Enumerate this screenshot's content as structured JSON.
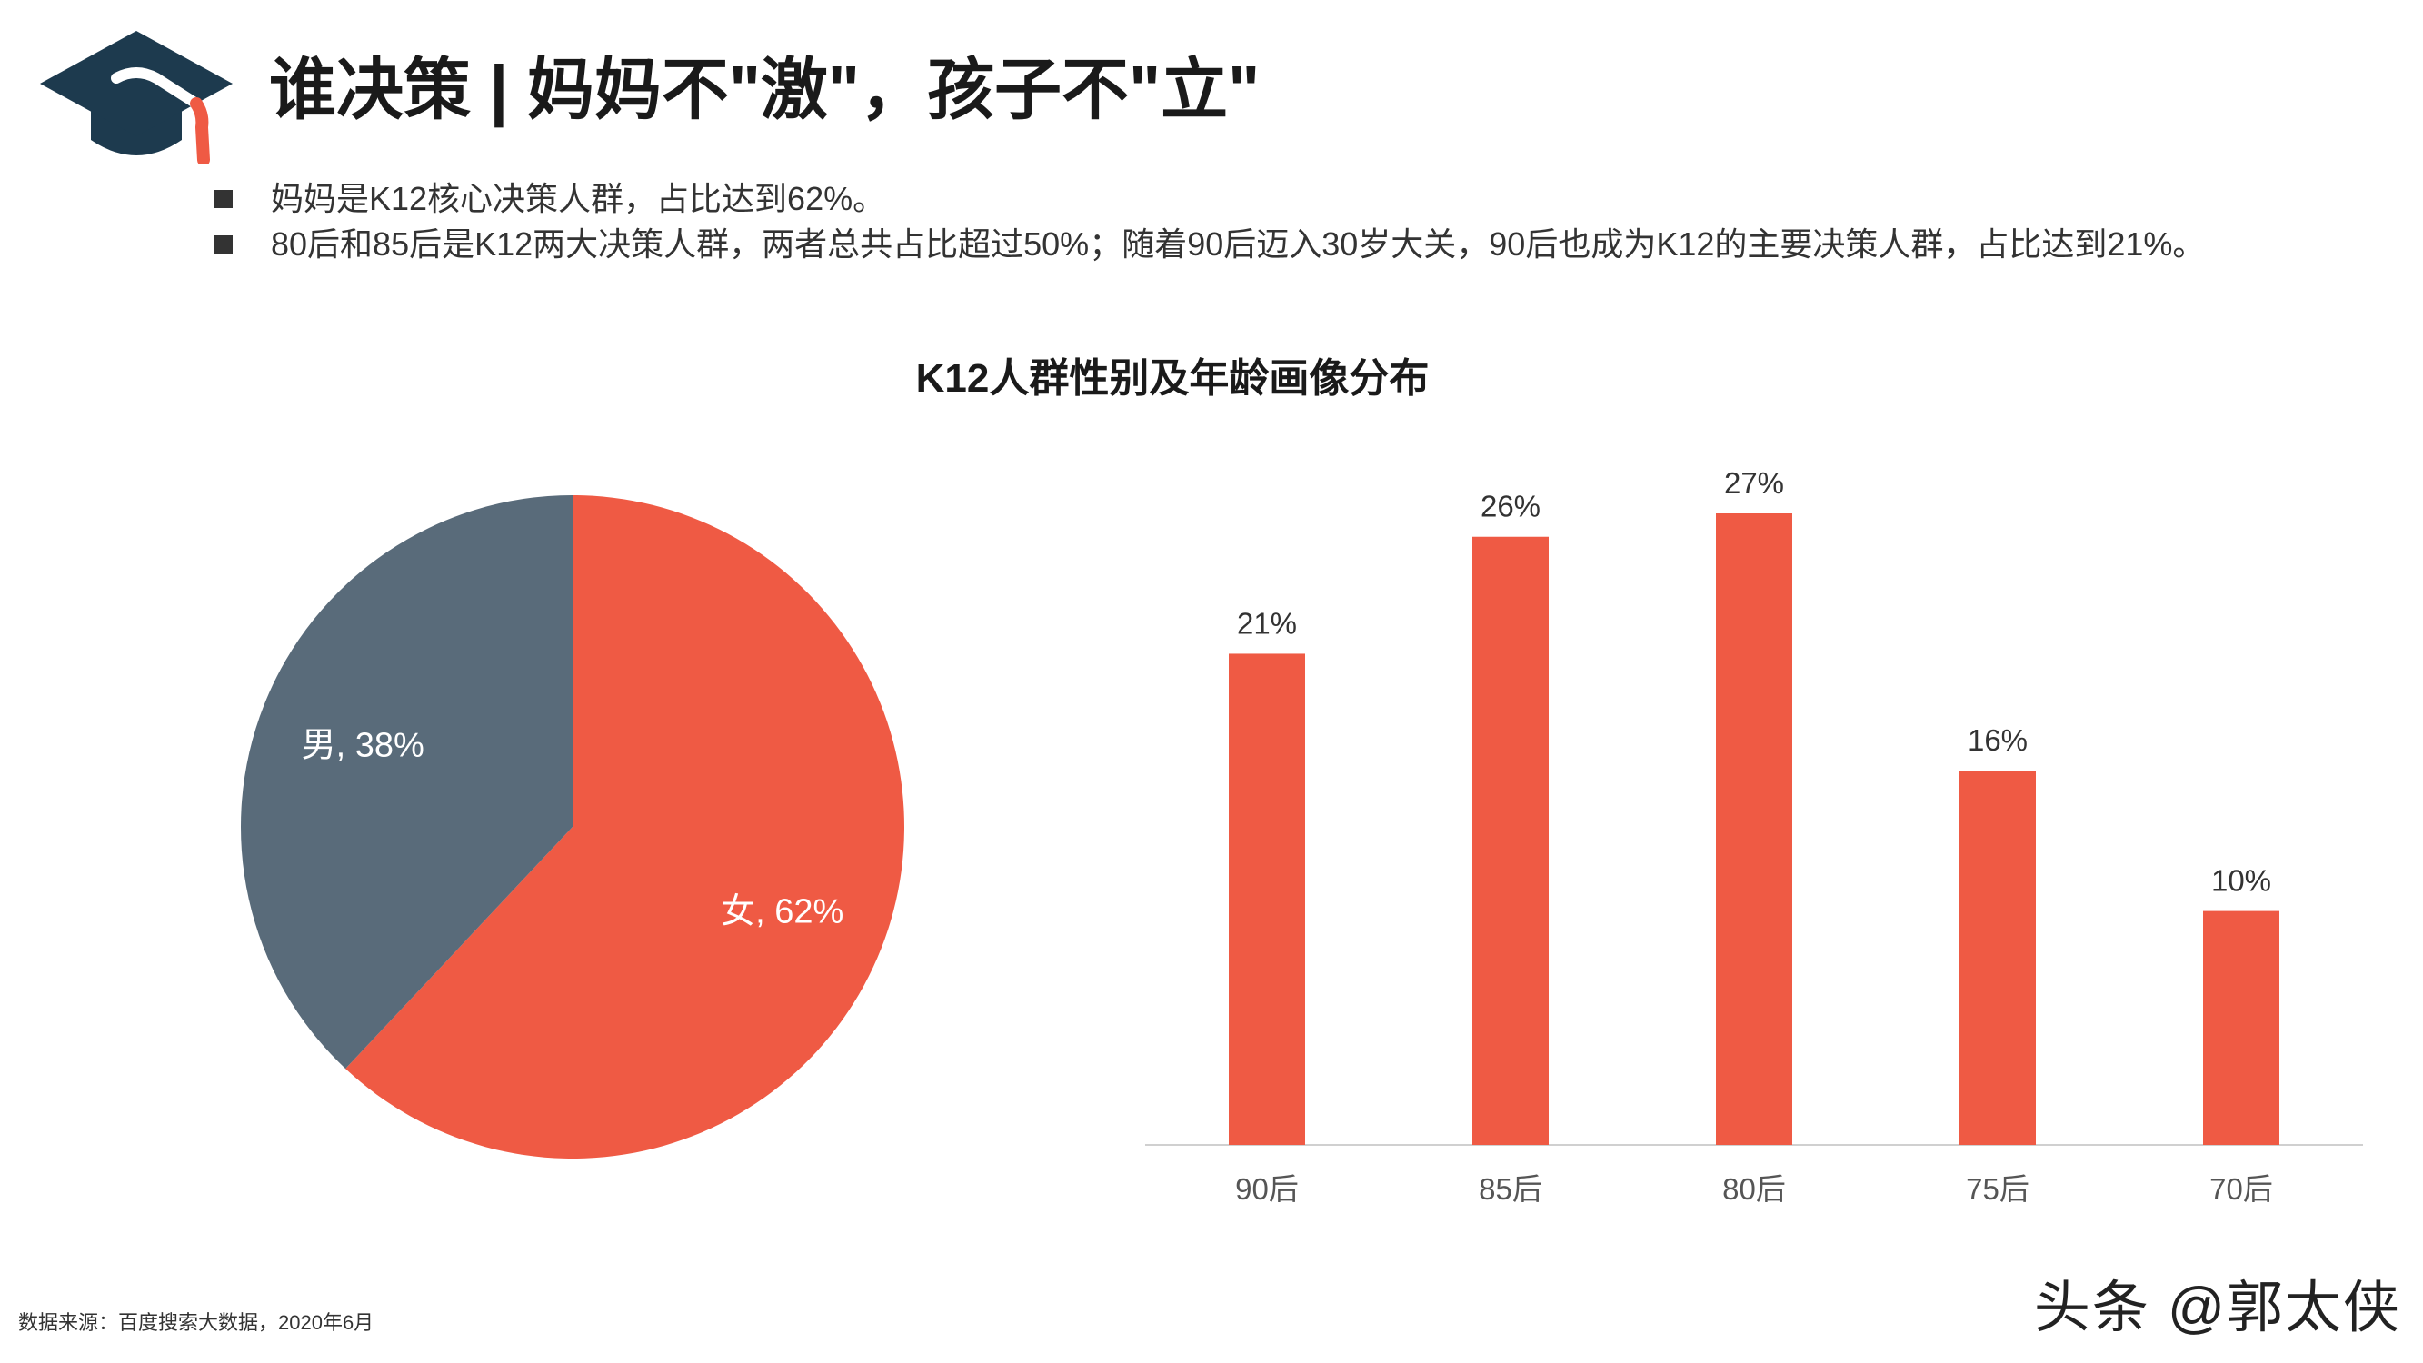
{
  "header": {
    "title": "谁决策 | 妈妈不\"激\"，孩子不\"立\"",
    "logo_icon": "graduation-cap-icon"
  },
  "bullets": [
    "妈妈是K12核心决策人群，占比达到62%。",
    "80后和85后是K12两大决策人群，两者总共占比超过50%；随着90后迈入30岁大关，90后也成为K12的主要决策人群，占比达到21%。"
  ],
  "chart_title": "K12人群性别及年龄画像分布",
  "chart_data": [
    {
      "type": "pie",
      "slices": [
        {
          "label": "女",
          "value": 62,
          "display": "女, 62%",
          "color": "#ef5a44"
        },
        {
          "label": "男",
          "value": 38,
          "display": "男, 38%",
          "color": "#596b7a"
        }
      ]
    },
    {
      "type": "bar",
      "categories": [
        "90后",
        "85后",
        "80后",
        "75后",
        "70后"
      ],
      "values": [
        21,
        26,
        27,
        16,
        10
      ],
      "value_labels": [
        "21%",
        "26%",
        "27%",
        "16%",
        "10%"
      ],
      "ylim": [
        0,
        27
      ],
      "grid": false,
      "color": "#ef5a44"
    }
  ],
  "footer": {
    "source": "数据来源：百度搜索大数据，2020年6月",
    "watermark": "头条 @郭太侠"
  }
}
